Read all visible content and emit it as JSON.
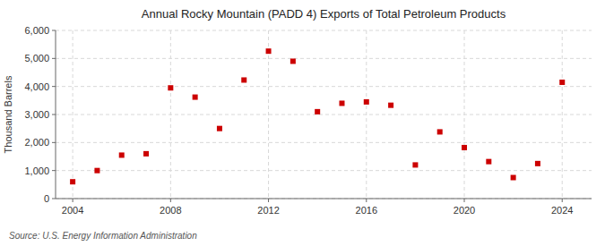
{
  "chart_data": {
    "type": "scatter",
    "title": "Annual Rocky Mountain (PADD 4) Exports of Total Petroleum Products",
    "y_label": "Thousand Barrels",
    "annotations": [
      "Source: U.S. Energy Information Administration"
    ],
    "x": [
      2004,
      2005,
      2006,
      2007,
      2008,
      2009,
      2010,
      2011,
      2012,
      2013,
      2014,
      2015,
      2016,
      2017,
      2018,
      2019,
      2020,
      2021,
      2022,
      2023,
      2024
    ],
    "values": [
      600,
      1000,
      1550,
      1600,
      3950,
      3620,
      2500,
      4230,
      5260,
      4900,
      3100,
      3400,
      3450,
      3330,
      1200,
      2380,
      1820,
      1320,
      750,
      1250,
      4150
    ],
    "color": "#cc0000",
    "marker": "square",
    "xlim": [
      2003.3,
      2025.2
    ],
    "ylim": [
      0,
      6000
    ],
    "xticks": [
      2004,
      2008,
      2012,
      2016,
      2020,
      2024
    ],
    "yticks": [
      0,
      {
        "value": 1000,
        "label": "1,000"
      },
      {
        "value": 2000,
        "label": "2,000"
      },
      {
        "value": 3000,
        "label": "3,000"
      },
      {
        "value": 4000,
        "label": "4,000"
      },
      {
        "value": 5000,
        "label": "5,000"
      },
      {
        "value": 6000,
        "label": "6,000"
      }
    ],
    "grid": true
  }
}
